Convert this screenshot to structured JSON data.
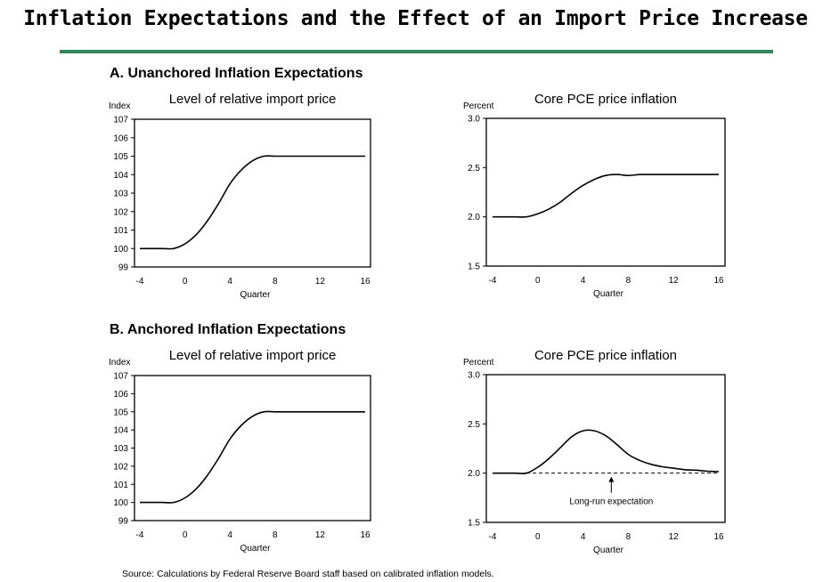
{
  "title": "Inflation Expectations and the Effect of an Import Price Increase",
  "colors": {
    "rule": "#2e8b57",
    "line": "#000000"
  },
  "panels": [
    {
      "label": "A.  Unanchored Inflation Expectations"
    },
    {
      "label": "B.  Anchored Inflation Expectations"
    }
  ],
  "source": "Source:  Calculations by Federal Reserve Board staff based on calibrated inflation models.",
  "chart_data": [
    {
      "id": "a-import",
      "panel": "A",
      "type": "line",
      "title": "Level of relative import price",
      "ylabel": "Index",
      "xlabel": "Quarter",
      "ylim": [
        99,
        107
      ],
      "yticks": [
        99,
        100,
        101,
        102,
        103,
        104,
        105,
        106,
        107
      ],
      "ytick_labels": [
        "99",
        "100",
        "101",
        "102",
        "103",
        "104",
        "105",
        "106",
        "107"
      ],
      "xlim": [
        -4,
        16
      ],
      "xticks": [
        -4,
        0,
        4,
        8,
        12,
        16
      ],
      "xtick_labels": [
        "-4",
        "0",
        "4",
        "8",
        "12",
        "16"
      ],
      "grid": false,
      "series": [
        {
          "name": "Relative import price",
          "x": [
            -4,
            -3,
            -2,
            -1,
            0,
            1,
            2,
            3,
            4,
            5,
            6,
            7,
            8,
            9,
            10,
            11,
            12,
            13,
            14,
            15,
            16
          ],
          "values": [
            100,
            100,
            100,
            100,
            100.25,
            100.75,
            101.5,
            102.45,
            103.5,
            104.25,
            104.75,
            105,
            105,
            105,
            105,
            105,
            105,
            105,
            105,
            105,
            105
          ]
        }
      ]
    },
    {
      "id": "a-pce",
      "panel": "A",
      "type": "line",
      "title": "Core PCE price inflation",
      "ylabel": "Percent",
      "xlabel": "Quarter",
      "ylim": [
        1.5,
        3.0
      ],
      "yticks": [
        1.5,
        2.0,
        2.5,
        3.0
      ],
      "ytick_labels": [
        "1.5",
        "2.0",
        "2.5",
        "3.0"
      ],
      "xlim": [
        -4,
        16
      ],
      "xticks": [
        -4,
        0,
        4,
        8,
        12,
        16
      ],
      "xtick_labels": [
        "-4",
        "0",
        "4",
        "8",
        "12",
        "16"
      ],
      "grid": false,
      "series": [
        {
          "name": "Core PCE price inflation",
          "x": [
            -4,
            -3,
            -2,
            -1,
            0,
            1,
            2,
            3,
            4,
            5,
            6,
            7,
            8,
            9,
            10,
            11,
            12,
            13,
            14,
            15,
            16
          ],
          "values": [
            2.0,
            2.0,
            2.0,
            2.0,
            2.03,
            2.08,
            2.15,
            2.24,
            2.32,
            2.38,
            2.42,
            2.43,
            2.42,
            2.43,
            2.43,
            2.43,
            2.43,
            2.43,
            2.43,
            2.43,
            2.43
          ]
        }
      ]
    },
    {
      "id": "b-import",
      "panel": "B",
      "type": "line",
      "title": "Level of relative import price",
      "ylabel": "Index",
      "xlabel": "Quarter",
      "ylim": [
        99,
        107
      ],
      "yticks": [
        99,
        100,
        101,
        102,
        103,
        104,
        105,
        106,
        107
      ],
      "ytick_labels": [
        "99",
        "100",
        "101",
        "102",
        "103",
        "104",
        "105",
        "106",
        "107"
      ],
      "xlim": [
        -4,
        16
      ],
      "xticks": [
        -4,
        0,
        4,
        8,
        12,
        16
      ],
      "xtick_labels": [
        "-4",
        "0",
        "4",
        "8",
        "12",
        "16"
      ],
      "grid": false,
      "series": [
        {
          "name": "Relative import price",
          "x": [
            -4,
            -3,
            -2,
            -1,
            0,
            1,
            2,
            3,
            4,
            5,
            6,
            7,
            8,
            9,
            10,
            11,
            12,
            13,
            14,
            15,
            16
          ],
          "values": [
            100,
            100,
            100,
            100,
            100.25,
            100.75,
            101.5,
            102.45,
            103.5,
            104.25,
            104.75,
            105,
            105,
            105,
            105,
            105,
            105,
            105,
            105,
            105,
            105
          ]
        }
      ]
    },
    {
      "id": "b-pce",
      "panel": "B",
      "type": "line",
      "title": "Core PCE price inflation",
      "ylabel": "Percent",
      "xlabel": "Quarter",
      "ylim": [
        1.5,
        3.0
      ],
      "yticks": [
        1.5,
        2.0,
        2.5,
        3.0
      ],
      "ytick_labels": [
        "1.5",
        "2.0",
        "2.5",
        "3.0"
      ],
      "xlim": [
        -4,
        16
      ],
      "xticks": [
        -4,
        0,
        4,
        8,
        12,
        16
      ],
      "xtick_labels": [
        "-4",
        "0",
        "4",
        "8",
        "12",
        "16"
      ],
      "grid": false,
      "series": [
        {
          "name": "Core PCE price inflation",
          "x": [
            -4,
            -3,
            -2,
            -1,
            0,
            1,
            2,
            3,
            4,
            5,
            6,
            7,
            8,
            9,
            10,
            11,
            12,
            13,
            14,
            15,
            16
          ],
          "values": [
            2.0,
            2.0,
            2.0,
            2.0,
            2.06,
            2.15,
            2.26,
            2.37,
            2.43,
            2.43,
            2.38,
            2.29,
            2.19,
            2.13,
            2.09,
            2.065,
            2.05,
            2.035,
            2.03,
            2.02,
            2.015
          ]
        }
      ],
      "reference_line": {
        "name": "Long-run expectation",
        "value": 2.0,
        "style": "dashed",
        "x_range": [
          -1,
          16
        ]
      },
      "annotation": {
        "text": "Long-run expectation",
        "arrow_x": 6.5,
        "points_to": 2.0
      }
    }
  ]
}
